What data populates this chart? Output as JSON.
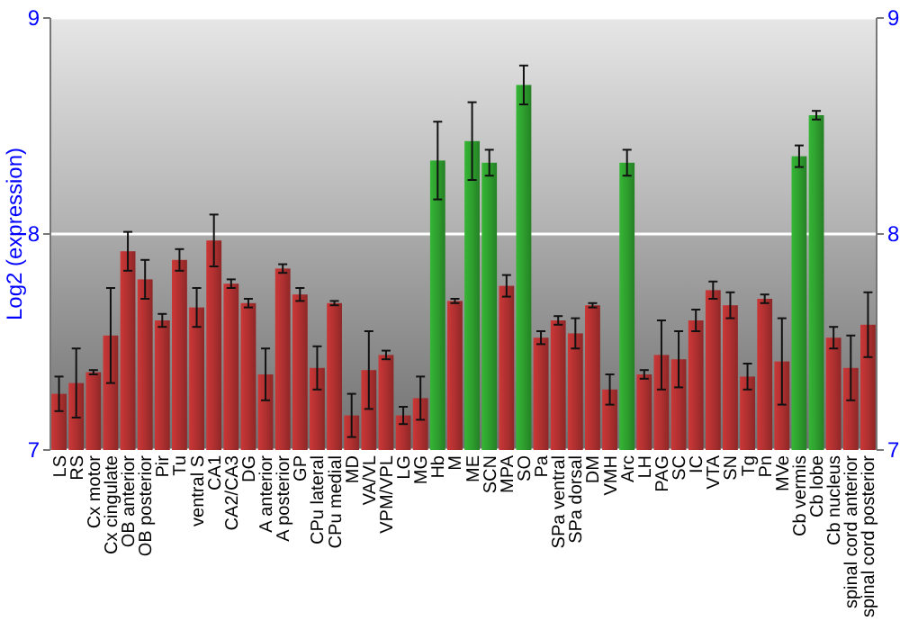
{
  "chart_data": {
    "type": "bar",
    "ylabel": "Log2 (expression)",
    "categories": [
      "LS",
      "RS",
      "Cx motor",
      "Cx cingulate",
      "OB anterior",
      "OB posterior",
      "Pir",
      "Tu",
      "ventral S",
      "CA1",
      "CA2/CA3",
      "DG",
      "A anterior",
      "A posterior",
      "GP",
      "CPu lateral",
      "CPu medial",
      "MD",
      "VA/VL",
      "VPM/VPL",
      "LG",
      "MG",
      "Hb",
      "M",
      "ME",
      "SCN",
      "MPA",
      "SO",
      "Pa",
      "SPa ventral",
      "SPa dorsal",
      "DM",
      "VMH",
      "Arc",
      "LH",
      "PAG",
      "SC",
      "IC",
      "VTA",
      "SN",
      "Tg",
      "Pn",
      "MVe",
      "Cb vermis",
      "Cb lobe",
      "Cb nucleus",
      "spinal cord anterior",
      "spinal cord posterior"
    ],
    "values": [
      7.26,
      7.31,
      7.36,
      7.53,
      7.92,
      7.79,
      7.6,
      7.88,
      7.66,
      7.97,
      7.77,
      7.68,
      7.35,
      7.84,
      7.72,
      7.38,
      7.68,
      7.16,
      7.37,
      7.44,
      7.16,
      7.24,
      8.34,
      7.69,
      8.43,
      8.33,
      7.76,
      8.69,
      7.52,
      7.6,
      7.54,
      7.67,
      7.28,
      8.33,
      7.35,
      7.44,
      7.42,
      7.6,
      7.74,
      7.67,
      7.34,
      7.7,
      7.41,
      8.36,
      8.55,
      7.52,
      7.38,
      7.58
    ],
    "errors": [
      0.08,
      0.16,
      0.01,
      0.22,
      0.09,
      0.09,
      0.03,
      0.05,
      0.09,
      0.12,
      0.02,
      0.02,
      0.12,
      0.02,
      0.03,
      0.1,
      0.01,
      0.1,
      0.18,
      0.02,
      0.04,
      0.1,
      0.18,
      0.01,
      0.18,
      0.06,
      0.05,
      0.09,
      0.03,
      0.02,
      0.07,
      0.01,
      0.07,
      0.06,
      0.02,
      0.16,
      0.13,
      0.05,
      0.04,
      0.06,
      0.06,
      0.02,
      0.2,
      0.05,
      0.02,
      0.05,
      0.15,
      0.15
    ],
    "colors": [
      "#b03030",
      "#b03030",
      "#b03030",
      "#b03030",
      "#b03030",
      "#b03030",
      "#b03030",
      "#b03030",
      "#b03030",
      "#b03030",
      "#b03030",
      "#b03030",
      "#b03030",
      "#b03030",
      "#b03030",
      "#b03030",
      "#b03030",
      "#b03030",
      "#b03030",
      "#b03030",
      "#b03030",
      "#b03030",
      "#2e9e2e",
      "#b03030",
      "#2e9e2e",
      "#2e9e2e",
      "#b03030",
      "#2e9e2e",
      "#b03030",
      "#b03030",
      "#b03030",
      "#b03030",
      "#b03030",
      "#2e9e2e",
      "#b03030",
      "#b03030",
      "#b03030",
      "#b03030",
      "#b03030",
      "#b03030",
      "#b03030",
      "#b03030",
      "#b03030",
      "#2e9e2e",
      "#2e9e2e",
      "#b03030",
      "#b03030",
      "#b03030"
    ],
    "ylim": [
      7,
      9
    ],
    "yticks": [
      7,
      8,
      9
    ],
    "y2lim": [
      7,
      9
    ],
    "y2ticks": [
      7,
      8,
      9
    ],
    "grid": "y"
  }
}
